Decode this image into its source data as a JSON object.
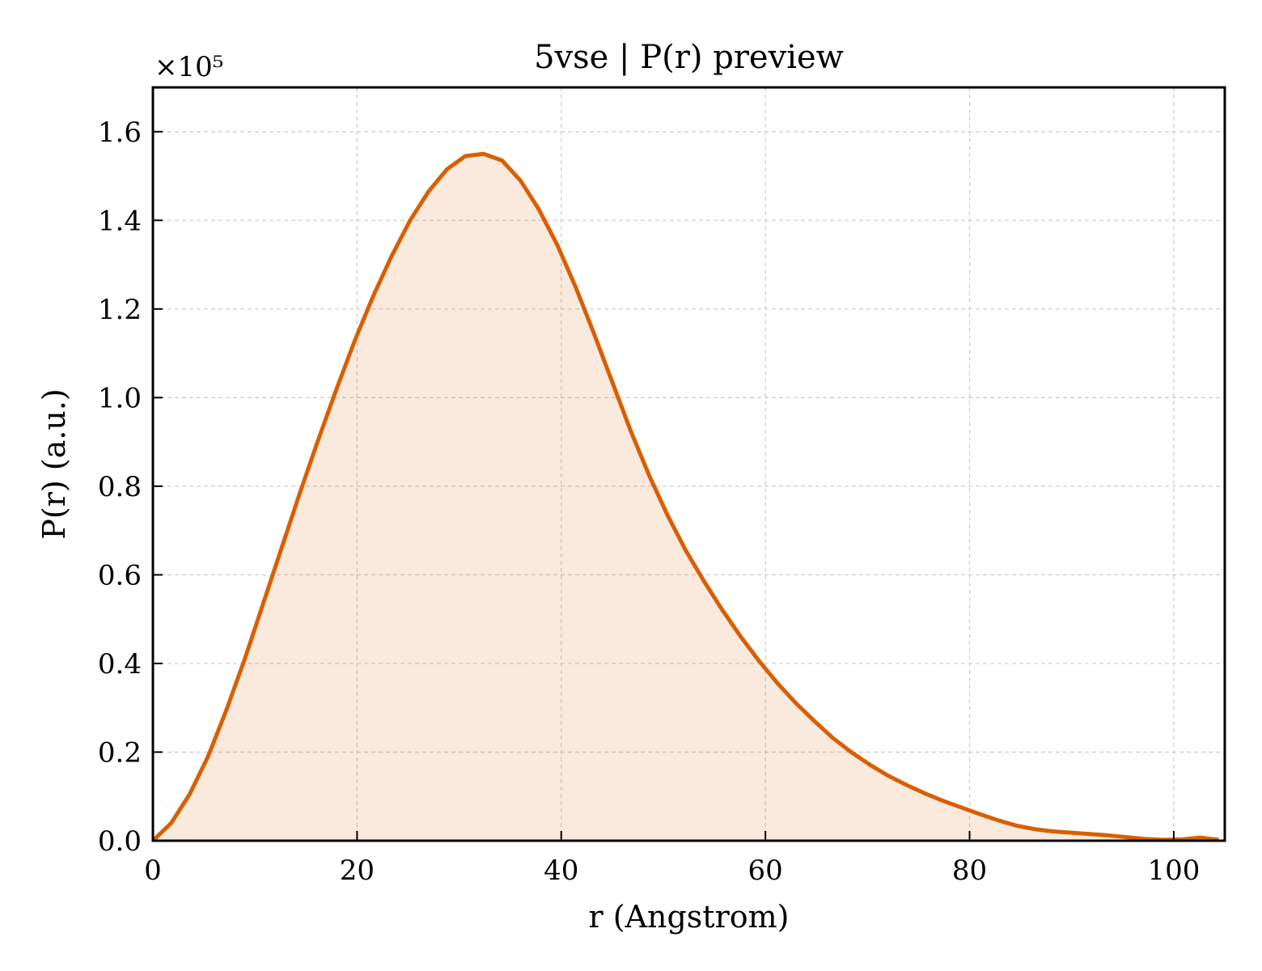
{
  "chart_data": {
    "type": "area",
    "title": "5vse | P(r) preview",
    "xlabel": "r (Angstrom)",
    "ylabel": "P(r) (a.u.)",
    "y_multiplier_label": "×10⁵",
    "y_scale_factor": 100000,
    "xlim": [
      0,
      105
    ],
    "ylim": [
      0,
      170000
    ],
    "xticks": [
      0,
      20,
      40,
      60,
      80,
      100
    ],
    "xtick_labels": [
      "0",
      "20",
      "40",
      "60",
      "80",
      "100"
    ],
    "yticks": [
      0,
      20000,
      40000,
      60000,
      80000,
      100000,
      120000,
      140000,
      160000
    ],
    "ytick_labels": [
      "0.0",
      "0.2",
      "0.4",
      "0.6",
      "0.8",
      "1.0",
      "1.2",
      "1.4",
      "1.6"
    ],
    "grid": true,
    "line_color": "#d95f02",
    "fill_color": "#d95f02",
    "series": [
      {
        "x": [
          0,
          1.8,
          3.6,
          5.4,
          7.2,
          9.0,
          10.8,
          12.6,
          14.4,
          16.2,
          18.0,
          19.8,
          21.6,
          23.4,
          25.2,
          27.0,
          28.8,
          30.6,
          32.4,
          34.2,
          36.0,
          37.8,
          39.6,
          41.4,
          43.2,
          45.0,
          46.8,
          48.6,
          50.4,
          52.2,
          54.0,
          55.8,
          57.6,
          59.4,
          61.2,
          63.0,
          64.8,
          66.6,
          68.4,
          70.2,
          72.0,
          73.8,
          75.6,
          77.4,
          79.2,
          81.0,
          82.8,
          84.6,
          86.4,
          88.2,
          90.0,
          91.8,
          93.6,
          95.4,
          97.2,
          99.0,
          100.8,
          102.6,
          104.4
        ],
        "y": [
          0,
          4000,
          10500,
          19000,
          29500,
          41000,
          53500,
          66000,
          78500,
          90500,
          102000,
          113000,
          123000,
          132000,
          140000,
          146500,
          151500,
          154500,
          155000,
          153500,
          149000,
          142500,
          134500,
          125000,
          114500,
          103500,
          92500,
          82500,
          73500,
          65500,
          58500,
          52000,
          46000,
          40500,
          35500,
          31000,
          27000,
          23200,
          20000,
          17200,
          14700,
          12600,
          10700,
          9000,
          7500,
          6000,
          4600,
          3400,
          2600,
          2100,
          1800,
          1500,
          1200,
          800,
          400,
          200,
          300,
          700,
          200
        ]
      }
    ]
  }
}
